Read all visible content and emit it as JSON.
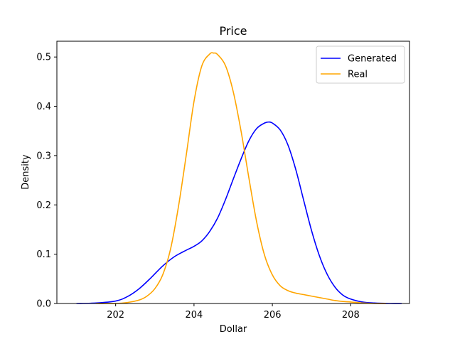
{
  "chart_data": {
    "type": "line",
    "title": "Price",
    "xlabel": "Dollar",
    "ylabel": "Density",
    "xlim": [
      200.5,
      209.5
    ],
    "ylim": [
      0,
      0.532
    ],
    "x_ticks": [
      202,
      204,
      206,
      208
    ],
    "x_tick_labels": [
      "202",
      "204",
      "206",
      "208"
    ],
    "y_ticks": [
      0.0,
      0.1,
      0.2,
      0.3,
      0.4,
      0.5
    ],
    "y_tick_labels": [
      "0.0",
      "0.1",
      "0.2",
      "0.3",
      "0.4",
      "0.5"
    ],
    "grid": false,
    "legend_position": "top-right",
    "series": [
      {
        "name": "Generated",
        "color": "#0000ff",
        "x": [
          201.0,
          201.5,
          202.0,
          202.3,
          202.6,
          202.9,
          203.2,
          203.5,
          203.8,
          204.0,
          204.2,
          204.4,
          204.6,
          204.8,
          205.0,
          205.2,
          205.4,
          205.6,
          205.8,
          205.9,
          206.0,
          206.2,
          206.4,
          206.6,
          206.8,
          207.0,
          207.2,
          207.4,
          207.6,
          207.8,
          208.0,
          208.3,
          208.6,
          209.0,
          209.3
        ],
        "y": [
          0.0,
          0.001,
          0.005,
          0.014,
          0.03,
          0.052,
          0.076,
          0.095,
          0.108,
          0.116,
          0.127,
          0.146,
          0.173,
          0.21,
          0.252,
          0.293,
          0.33,
          0.355,
          0.366,
          0.368,
          0.366,
          0.352,
          0.321,
          0.271,
          0.209,
          0.148,
          0.097,
          0.059,
          0.033,
          0.017,
          0.009,
          0.003,
          0.001,
          0.0,
          0.0
        ]
      },
      {
        "name": "Real",
        "color": "#ffa500",
        "x": [
          201.5,
          202.0,
          202.3,
          202.6,
          202.8,
          203.0,
          203.2,
          203.4,
          203.6,
          203.8,
          204.0,
          204.2,
          204.4,
          204.5,
          204.6,
          204.8,
          205.0,
          205.2,
          205.4,
          205.6,
          205.8,
          206.0,
          206.2,
          206.4,
          206.6,
          206.8,
          207.0,
          207.2,
          207.4,
          207.6,
          207.8,
          208.0,
          208.3,
          208.6,
          208.9
        ],
        "y": [
          0.0,
          0.0,
          0.002,
          0.007,
          0.015,
          0.03,
          0.058,
          0.11,
          0.195,
          0.3,
          0.41,
          0.482,
          0.506,
          0.508,
          0.505,
          0.483,
          0.43,
          0.35,
          0.255,
          0.165,
          0.098,
          0.058,
          0.036,
          0.026,
          0.021,
          0.018,
          0.015,
          0.012,
          0.009,
          0.006,
          0.004,
          0.003,
          0.001,
          0.0,
          0.0
        ]
      }
    ]
  }
}
